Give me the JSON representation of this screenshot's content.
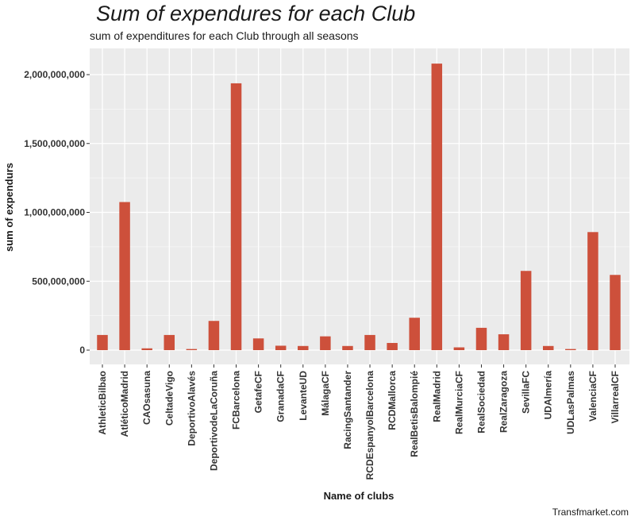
{
  "title": "Sum of expendures for each Club",
  "subtitle": "sum of expenditures for each Club through all seasons",
  "caption": "Transfmarket.com",
  "colors": {
    "bar": "#cd503b",
    "panel": "#ebebeb",
    "grid": "#ffffff"
  },
  "chart_data": {
    "type": "bar",
    "title": "Sum of expendures for each Club",
    "xlabel": "Name of clubs",
    "ylabel": "sum of expendurs",
    "ylim": [
      -80000000,
      2200000000
    ],
    "yticks": [
      0,
      500000000,
      1000000000,
      1500000000,
      2000000000
    ],
    "ytick_labels": [
      "0",
      "500,000,000",
      "1,000,000,000",
      "1,500,000,000",
      "2,000,000,000"
    ],
    "grid": true,
    "categories": [
      "AthleticBilbao",
      "AtléticoMadrid",
      "CAOsasuna",
      "CeltadeVigo",
      "DeportivoAlavés",
      "DeportivodeLaCoruña",
      "FCBarcelona",
      "GetafeCF",
      "GranadaCF",
      "LevanteUD",
      "MálagaCF",
      "RacingSantander",
      "RCDEspanyolBarcelona",
      "RCDMallorca",
      "RealBetisBalompié",
      "RealMadrid",
      "RealMurciaCF",
      "RealSociedad",
      "RealZaragoza",
      "SevillaFC",
      "UDAlmería",
      "UDLasPalmas",
      "ValenciaCF",
      "VillarrealCF"
    ],
    "values": [
      110000000,
      1075000000,
      13000000,
      110000000,
      8000000,
      212000000,
      1937000000,
      85000000,
      32000000,
      30000000,
      100000000,
      30000000,
      110000000,
      52000000,
      235000000,
      2080000000,
      20000000,
      162000000,
      115000000,
      575000000,
      30000000,
      8000000,
      857000000,
      546000000
    ]
  }
}
